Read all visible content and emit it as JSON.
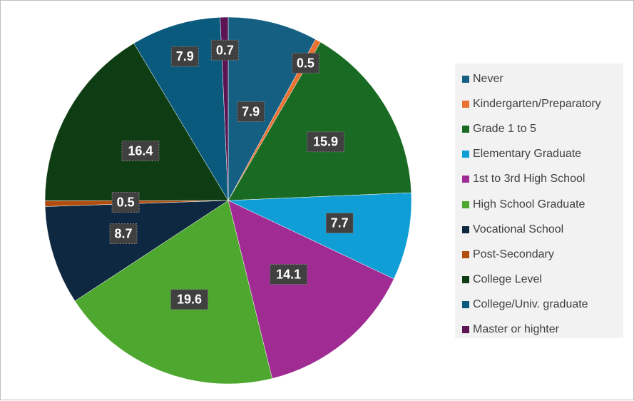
{
  "chart_data": {
    "type": "pie",
    "title": "",
    "categories": [
      "Never",
      "Kindergarten/Preparatory",
      "Grade 1 to 5",
      "Elementary Graduate",
      "1st to 3rd High School",
      "High School Graduate",
      "Vocational School",
      "Post-Secondary",
      "College Level",
      "College/Univ. graduate",
      "Master or highter"
    ],
    "values": [
      7.9,
      0.5,
      15.9,
      7.7,
      14.1,
      19.6,
      8.7,
      0.5,
      16.4,
      7.9,
      0.7
    ],
    "data_labels": [
      "7.9",
      "0.5",
      "15.9",
      "7.7",
      "14.1",
      "19.6",
      "8.7",
      "0.5",
      "16.4",
      "7.9",
      "0.7"
    ],
    "colors": [
      "#156082",
      "#e97132",
      "#196b24",
      "#0f9ed5",
      "#a02b93",
      "#4ea72e",
      "#0e2841",
      "#b14e0e",
      "#0f3d13",
      "#0a5a7d",
      "#5b1554"
    ],
    "legend_position": "right",
    "start_angle_deg": 0,
    "direction": "clockwise"
  }
}
